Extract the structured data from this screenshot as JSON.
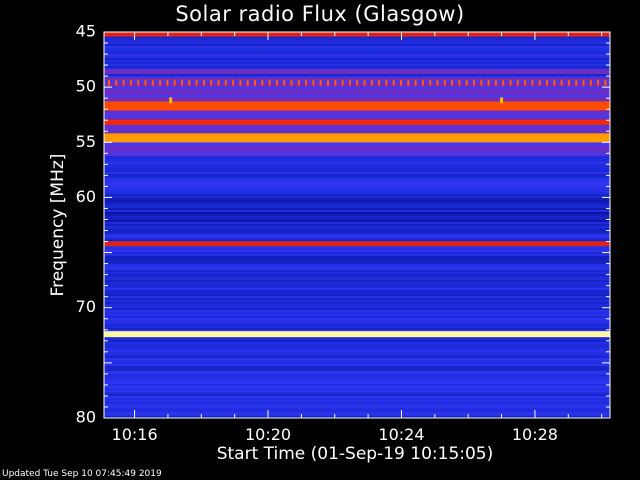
{
  "chart_data": {
    "type": "heatmap",
    "title": "Solar radio Flux (Glasgow)",
    "ylabel": "Frequency [MHz]",
    "xlabel": "Start Time (01-Sep-19 10:15:05)",
    "ylim": [
      45,
      80
    ],
    "xlim": [
      "10:15:05",
      "10:30:15"
    ],
    "y_inverted": true,
    "y_ticks": [
      45,
      50,
      55,
      60,
      70,
      80
    ],
    "x_ticks": [
      "10:16",
      "10:20",
      "10:24",
      "10:28"
    ],
    "colormap": [
      "#0a0a8c",
      "#1a2ad8",
      "#3b3bff",
      "#7a2ab0",
      "#c41e28",
      "#ff2a00",
      "#ff7a00",
      "#ffd000",
      "#ffffc0"
    ],
    "background_level": 0.15,
    "bands": [
      {
        "freq": 45.2,
        "intensity": 0.55
      },
      {
        "freq": 48.6,
        "intensity": 0.35
      },
      {
        "freq": 49.6,
        "intensity": 0.7,
        "dotted": true
      },
      {
        "freq": 51.7,
        "intensity": 0.68
      },
      {
        "freq": 53.2,
        "intensity": 0.6
      },
      {
        "freq": 54.6,
        "intensity": 0.8
      },
      {
        "freq": 56.0,
        "intensity": 0.3
      },
      {
        "freq": 64.2,
        "intensity": 0.55
      },
      {
        "freq": 65.5,
        "intensity": 0.08
      },
      {
        "freq": 72.4,
        "intensity": 0.98
      },
      {
        "freq": 75.5,
        "intensity": 0.1
      }
    ],
    "bursts": [
      {
        "time": "10:17:05",
        "freq": 51.2
      },
      {
        "time": "10:27:00",
        "freq": 51.2
      }
    ]
  },
  "footer": {
    "updated": "Updated Tue Sep 10 07:45:49 2019"
  }
}
